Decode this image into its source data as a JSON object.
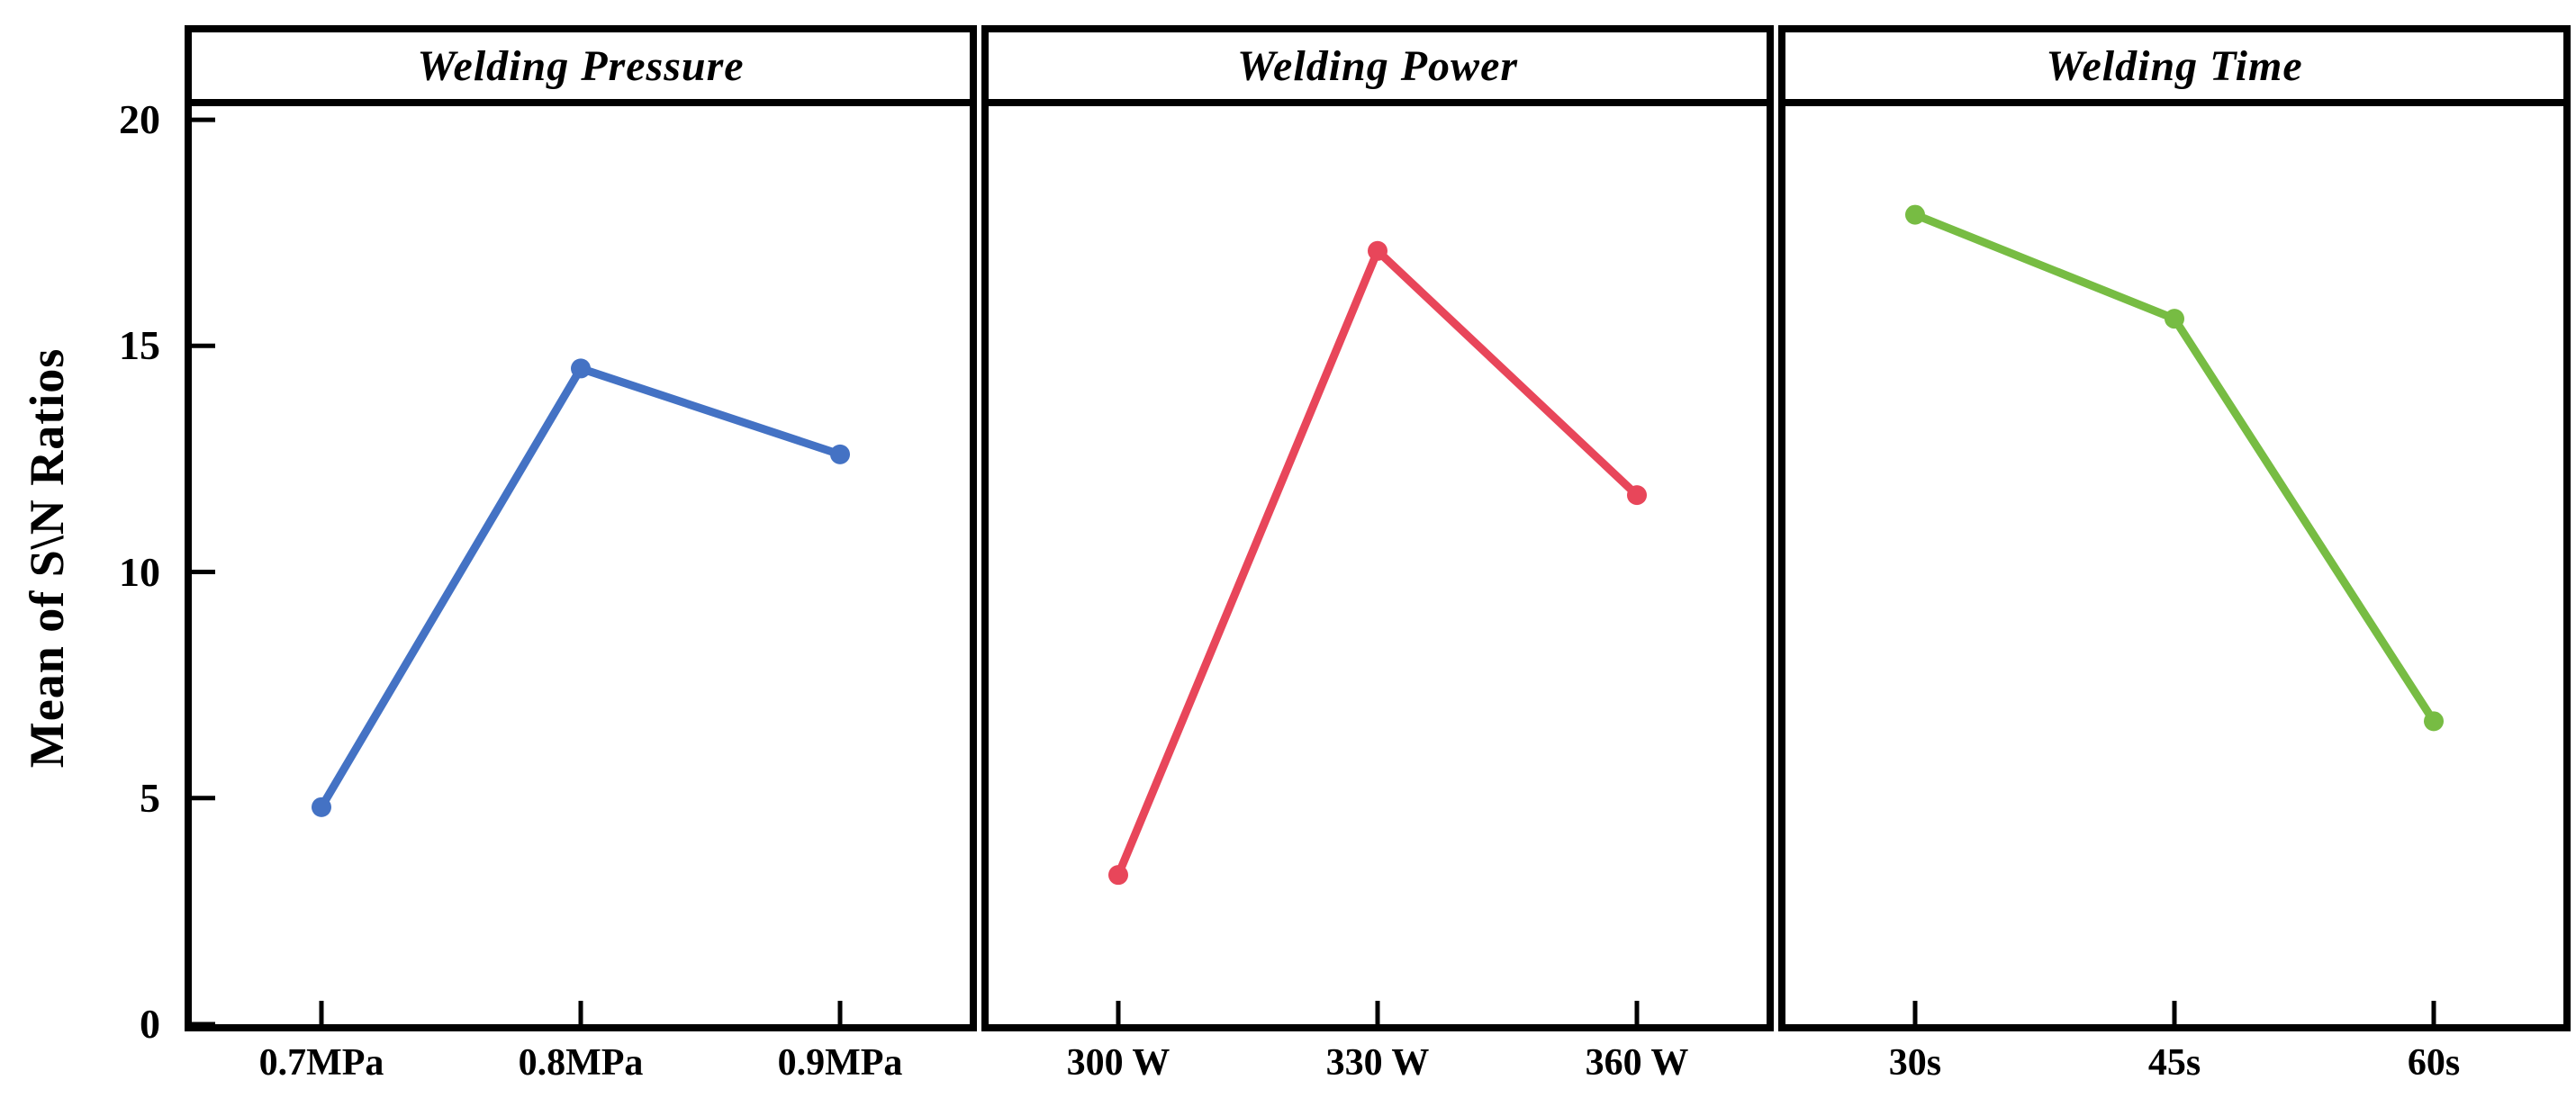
{
  "chart_data": {
    "type": "line",
    "title": "",
    "ylabel": "Mean of S\\N Ratios",
    "xlabel": "",
    "ylim": [
      0,
      20.3
    ],
    "yticks": [
      0,
      5,
      10,
      15,
      20
    ],
    "grid": false,
    "legend": "none",
    "marker": "circle",
    "panels": [
      {
        "title": "Welding Pressure",
        "color": "#4472C4",
        "categories": [
          "0.7MPa",
          "0.8MPa",
          "0.9MPa"
        ],
        "values": [
          4.8,
          14.5,
          12.6
        ]
      },
      {
        "title": "Welding Power",
        "color": "#E8465A",
        "categories": [
          "300 W",
          "330 W",
          "360 W"
        ],
        "values": [
          3.3,
          17.1,
          11.7
        ]
      },
      {
        "title": "Welding Time",
        "color": "#77BC43",
        "categories": [
          "30s",
          "45s",
          "60s"
        ],
        "values": [
          17.9,
          15.6,
          6.7
        ]
      }
    ],
    "style": {
      "axis_color": "#000000",
      "line_width": 9,
      "marker_radius": 11,
      "tick_length": 26,
      "tick_width": 5
    }
  }
}
